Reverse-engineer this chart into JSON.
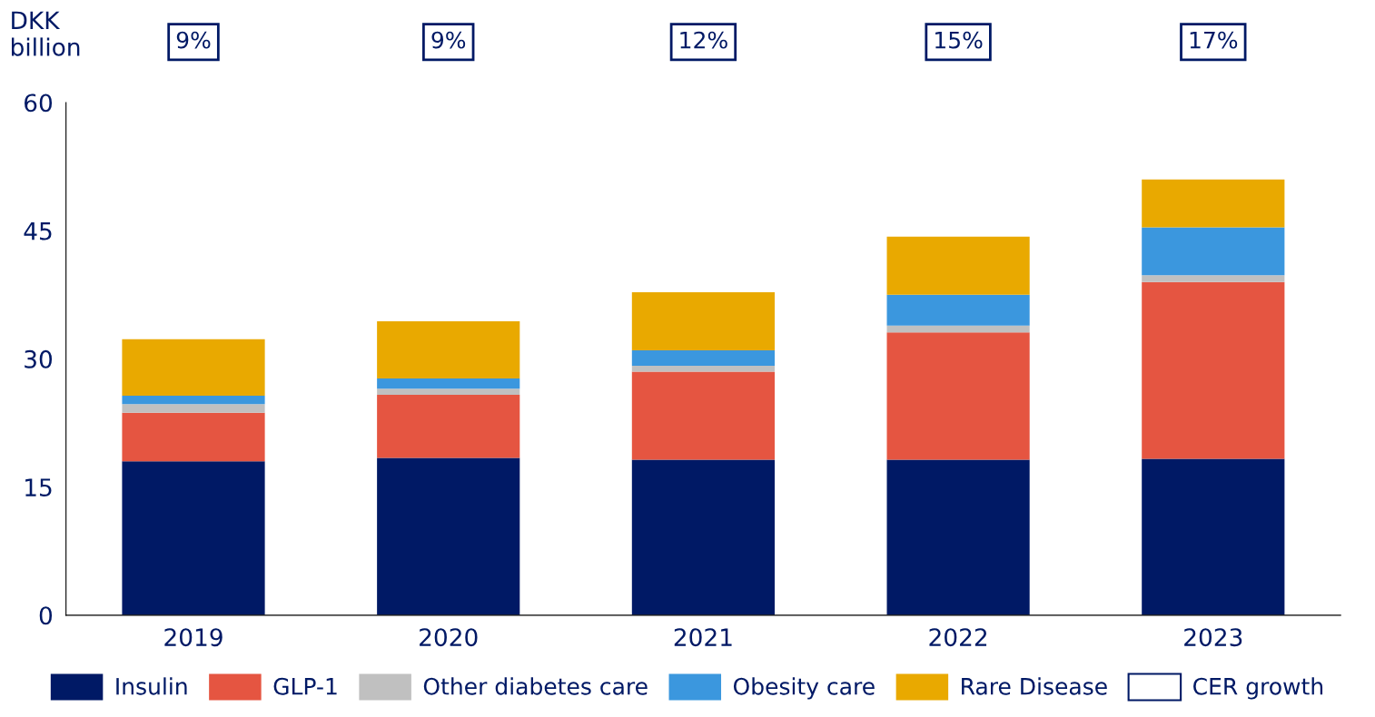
{
  "chart_data": {
    "type": "bar",
    "stacked": true,
    "ylabel": "DKK billion",
    "categories": [
      "2019",
      "2020",
      "2021",
      "2022",
      "2023"
    ],
    "series": [
      {
        "name": "Insulin",
        "color": "#001965",
        "values": [
          18.0,
          18.4,
          18.2,
          18.2,
          18.3
        ]
      },
      {
        "name": "GLP-1",
        "color": "#e55541",
        "values": [
          5.7,
          7.4,
          10.3,
          14.9,
          20.7
        ]
      },
      {
        "name": "Other diabetes care",
        "color": "#c0c0c0",
        "values": [
          1.0,
          0.7,
          0.7,
          0.8,
          0.8
        ]
      },
      {
        "name": "Obesity care",
        "color": "#3b97de",
        "values": [
          1.0,
          1.2,
          1.8,
          3.6,
          5.6
        ]
      },
      {
        "name": "Rare Disease",
        "color": "#e9a900",
        "values": [
          6.6,
          6.7,
          6.8,
          6.8,
          5.6
        ]
      },
      {
        "name": "CER growth",
        "type": "other",
        "color": "#001965",
        "values": [
          null,
          null,
          null,
          null,
          null
        ]
      }
    ],
    "annotations": [
      "9%",
      "9%",
      "12%",
      "15%",
      "17%"
    ],
    "ylim": [
      0,
      60
    ],
    "yticks": [
      0,
      15,
      30,
      45,
      60
    ],
    "grid": false,
    "legend": "bottom"
  }
}
